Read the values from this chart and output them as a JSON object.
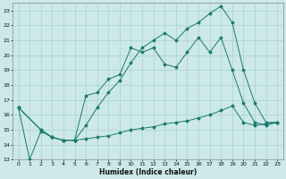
{
  "xlabel": "Humidex (Indice chaleur)",
  "xlim": [
    -0.5,
    23.5
  ],
  "ylim": [
    13,
    23.5
  ],
  "xticks": [
    0,
    1,
    2,
    3,
    4,
    5,
    6,
    7,
    8,
    9,
    10,
    11,
    12,
    13,
    14,
    15,
    16,
    17,
    18,
    19,
    20,
    21,
    22,
    23
  ],
  "yticks": [
    13,
    14,
    15,
    16,
    17,
    18,
    19,
    20,
    21,
    22,
    23
  ],
  "bg_color": "#cce8e8",
  "grid_color": "#aad0d0",
  "line_color": "#1a7a6e",
  "line1_x": [
    0,
    1,
    2,
    3,
    4,
    5,
    6,
    7,
    8,
    9,
    10,
    11,
    12,
    13,
    14,
    15,
    16,
    17,
    18,
    19,
    20,
    21,
    22,
    23
  ],
  "line1_y": [
    16.5,
    13.0,
    14.9,
    14.5,
    14.3,
    14.3,
    17.3,
    17.5,
    18.4,
    18.7,
    20.5,
    20.2,
    20.5,
    19.4,
    19.2,
    20.2,
    21.2,
    20.2,
    21.2,
    19.0,
    16.8,
    15.5,
    15.3,
    15.5
  ],
  "line2_x": [
    0,
    2,
    3,
    4,
    5,
    6,
    7,
    8,
    9,
    10,
    11,
    12,
    13,
    14,
    15,
    16,
    17,
    18,
    19,
    20,
    21,
    22,
    23
  ],
  "line2_y": [
    16.5,
    15.0,
    14.5,
    14.3,
    14.3,
    15.3,
    16.5,
    17.5,
    18.3,
    19.5,
    20.5,
    21.0,
    21.5,
    21.0,
    21.8,
    22.2,
    22.8,
    23.3,
    22.2,
    19.0,
    16.8,
    15.5,
    15.5
  ],
  "line3_x": [
    0,
    2,
    3,
    4,
    5,
    6,
    7,
    8,
    9,
    10,
    11,
    12,
    13,
    14,
    15,
    16,
    17,
    18,
    19,
    20,
    21,
    22,
    23
  ],
  "line3_y": [
    16.5,
    15.0,
    14.5,
    14.3,
    14.3,
    14.4,
    14.5,
    14.6,
    14.8,
    15.0,
    15.1,
    15.2,
    15.4,
    15.5,
    15.6,
    15.8,
    16.0,
    16.3,
    16.6,
    15.5,
    15.3,
    15.4,
    15.5
  ]
}
